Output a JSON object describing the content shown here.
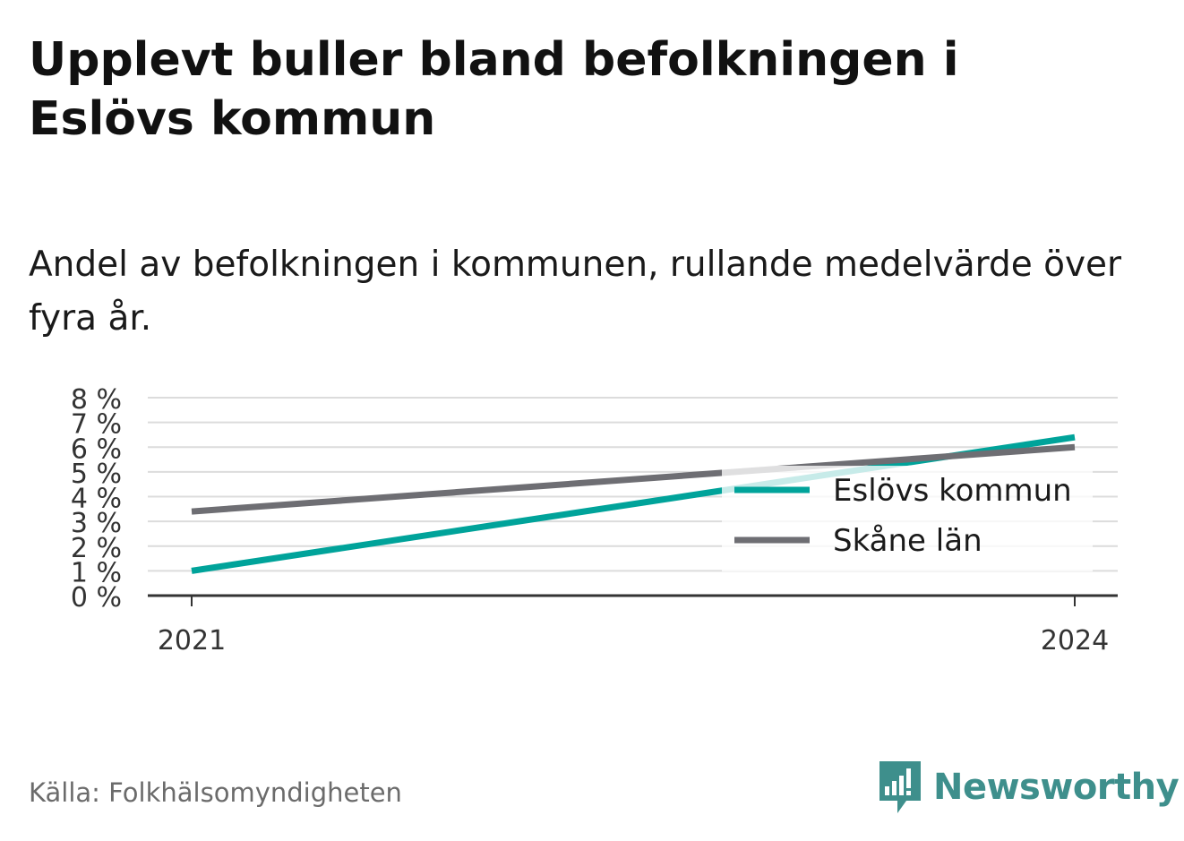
{
  "title": "Upplevt buller bland befolkningen i Eslövs kommun",
  "subtitle": "Andel av befolkningen i kommunen, rullande medelvärde över fyra år.",
  "source": "Källa: Folkhälsomyndigheten",
  "brand": {
    "name": "Newsworthy",
    "icon": "newsworthy-logo-icon",
    "color": "#3e8f8c"
  },
  "chart_data": {
    "type": "line",
    "x": [
      2021,
      2024
    ],
    "x_tick_labels": [
      "2021",
      "2024"
    ],
    "ylim": [
      0,
      8
    ],
    "y_ticks": [
      0,
      1,
      2,
      3,
      4,
      5,
      6,
      7,
      8
    ],
    "y_tick_labels": [
      "0 %",
      "1 %",
      "2 %",
      "3 %",
      "4 %",
      "5 %",
      "6 %",
      "7 %",
      "8 %"
    ],
    "grid": true,
    "legend_position": "right",
    "series": [
      {
        "name": "Eslövs kommun",
        "values": [
          1.0,
          6.4
        ],
        "color": "#00a39a"
      },
      {
        "name": "Skåne län",
        "values": [
          3.4,
          6.0
        ],
        "color": "#6e6e73"
      }
    ]
  }
}
